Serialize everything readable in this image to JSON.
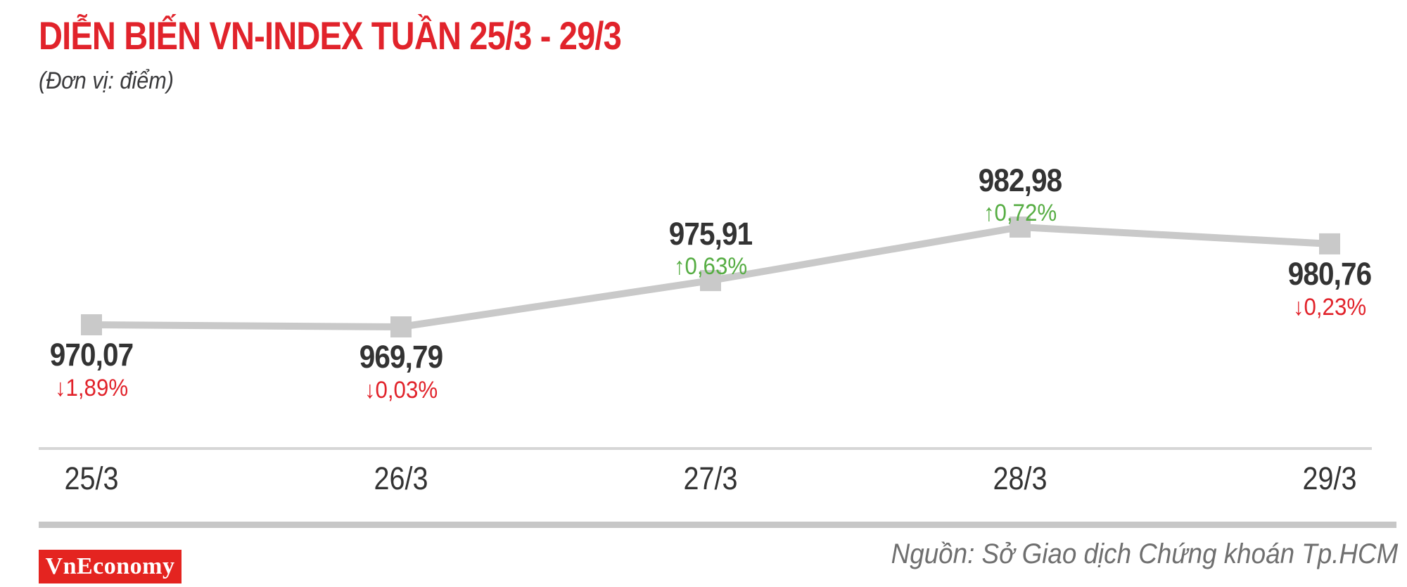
{
  "header": {
    "title": "DIỄN BIẾN VN-INDEX TUẦN 25/3 - 29/3",
    "subtitle": "(Đơn vị: điểm)"
  },
  "chart_data": {
    "type": "line",
    "title": "DIỄN BIẾN VN-INDEX TUẦN 25/3 - 29/3",
    "unit_note": "(Đơn vị: điểm)",
    "categories": [
      "25/3",
      "26/3",
      "27/3",
      "28/3",
      "29/3"
    ],
    "series": [
      {
        "name": "VN-Index",
        "values": [
          970.07,
          969.79,
          975.91,
          982.98,
          980.76
        ]
      }
    ],
    "point_labels": [
      "970,07",
      "969,79",
      "975,91",
      "982,98",
      "980,76"
    ],
    "changes": [
      {
        "text": "1,89%",
        "direction": "down"
      },
      {
        "text": "0,03%",
        "direction": "down"
      },
      {
        "text": "0,63%",
        "direction": "up"
      },
      {
        "text": "0,72%",
        "direction": "up"
      },
      {
        "text": "0,23%",
        "direction": "down"
      }
    ],
    "ylim": [
      965,
      987
    ],
    "grid": false,
    "legend": "none",
    "line_color": "#c9c9c9",
    "marker_color": "#c9c9c9",
    "up_color": "#56ad43",
    "down_color": "#e1232b",
    "text_color": "#333333"
  },
  "footer": {
    "logo_label": "VnEconomy",
    "logo_bg_color": "#e42420",
    "source_label": "Nguồn: Sở Giao dịch Chứng khoán Tp.HCM"
  }
}
